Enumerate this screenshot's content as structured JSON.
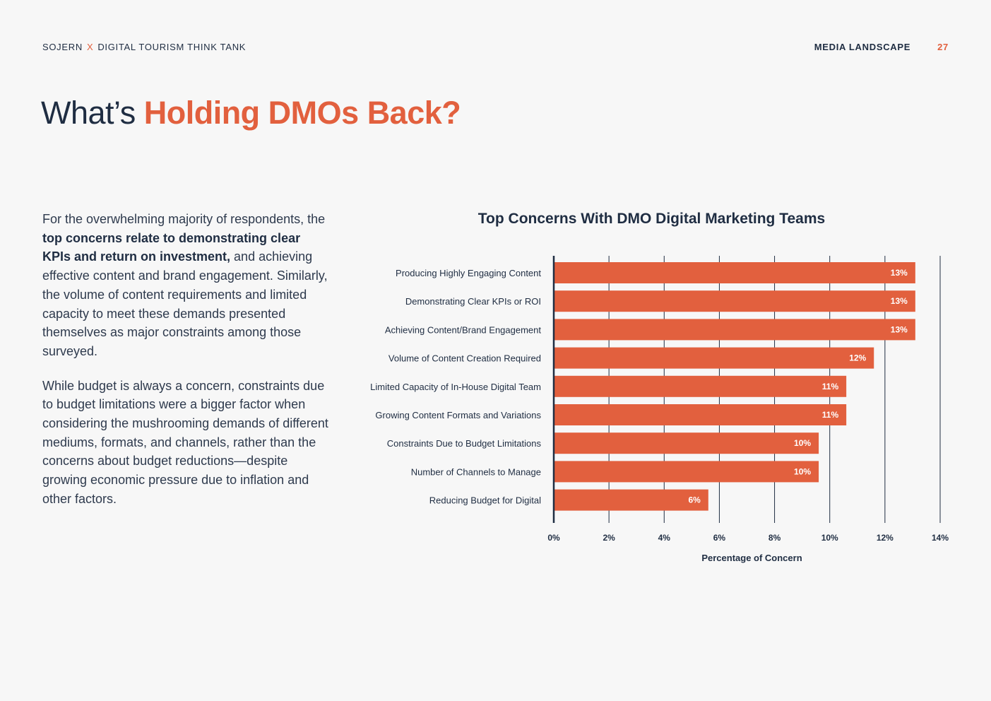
{
  "header": {
    "brand": "SOJERN",
    "separator": "X",
    "partner": "DIGITAL TOURISM THINK TANK",
    "section": "MEDIA LANDSCAPE",
    "page_number": "27"
  },
  "title": {
    "prefix": "What’s ",
    "highlight": "Holding DMOs Back?"
  },
  "body": {
    "p1_a": "For the overwhelming majority of respondents, the ",
    "p1_bold": "top concerns relate to demonstrating clear KPIs and return on investment,",
    "p1_b": " and achieving effective content and brand engagement. Similarly, the volume of content requirements and limited capacity to meet these demands presented themselves as major constraints among those surveyed.",
    "p2": "While budget is always a concern, constraints due to budget limitations were a bigger factor when considering the mushrooming demands of different mediums, formats, and channels, rather than the concerns about budget reductions—despite growing economic pressure due to inflation and other factors."
  },
  "chart_data": {
    "type": "bar",
    "orientation": "horizontal",
    "title": "Top Concerns With DMO Digital Marketing Teams",
    "xlabel": "Percentage of Concern",
    "ylabel": "",
    "categories": [
      "Producing Highly Engaging Content",
      "Demonstrating Clear KPIs or ROI",
      "Achieving Content/Brand Engagement",
      "Volume of Content Creation Required",
      "Limited Capacity of In-House Digital Team",
      "Growing Content Formats and Variations",
      "Constraints Due to Budget Limitations",
      "Number of Channels to Manage",
      "Reducing Budget for Digital"
    ],
    "values": [
      13.1,
      13.1,
      13.1,
      11.6,
      10.6,
      10.6,
      9.6,
      9.6,
      5.6
    ],
    "value_labels": [
      "13%",
      "13%",
      "13%",
      "12%",
      "11%",
      "11%",
      "10%",
      "10%",
      "6%"
    ],
    "xlim": [
      0,
      14
    ],
    "ticks": [
      0,
      2,
      4,
      6,
      8,
      10,
      12,
      14
    ],
    "tick_labels": [
      "0%",
      "2%",
      "4%",
      "6%",
      "8%",
      "10%",
      "12%",
      "14%"
    ],
    "grid": true,
    "legend": "none",
    "bar_color": "#e2603e"
  }
}
